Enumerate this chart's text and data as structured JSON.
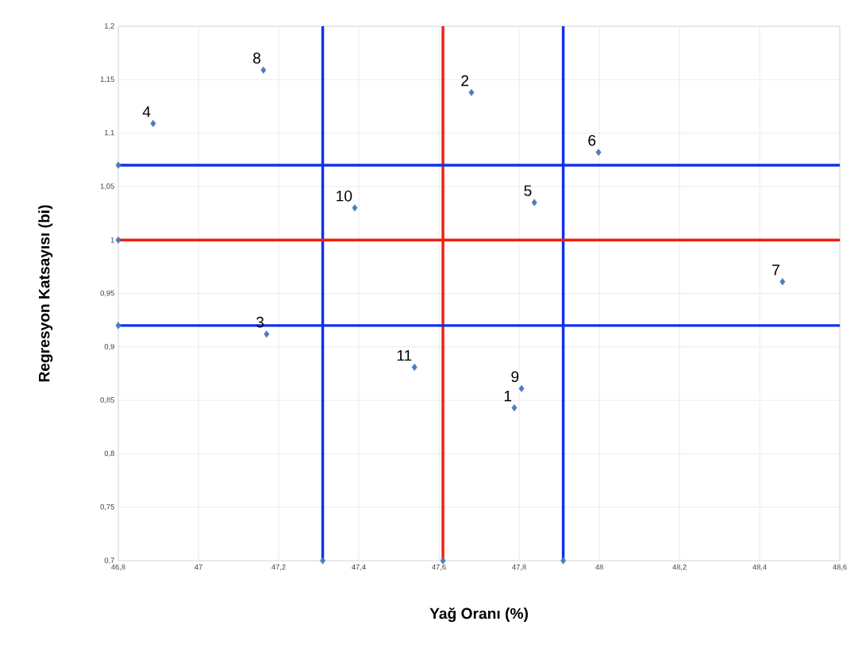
{
  "chart_data": {
    "type": "scatter",
    "xlabel": "Yağ Oranı (%)",
    "ylabel": "Regresyon Katsayısı (bi)",
    "series": [
      {
        "color": "#4a7ebb",
        "x": [
          47.788,
          47.681,
          47.17,
          46.887,
          47.838,
          47.998,
          48.457,
          47.162,
          47.806,
          47.39,
          47.539
        ],
        "values": [
          0.843,
          1.138,
          0.912,
          1.109,
          1.035,
          1.082,
          0.961,
          1.159,
          0.861,
          1.03,
          0.881
        ]
      },
      {
        "color": "#4a7ebb",
        "x": [
          46.8,
          46.8,
          46.8,
          47.31,
          47.61,
          47.91
        ],
        "values": [
          1.07,
          1.0,
          0.92,
          0.7,
          0.7,
          0.7
        ]
      }
    ],
    "marker": "diamond",
    "grid": true,
    "xlim": [
      46.8,
      48.6
    ],
    "ylim": [
      0.7,
      1.2
    ],
    "xticks": [
      {
        "value": 46.8,
        "label": "46,8"
      },
      47,
      {
        "value": 47.2,
        "label": "47,2"
      },
      {
        "value": 47.4,
        "label": "47,4"
      },
      {
        "value": 47.6,
        "label": "47,6"
      },
      {
        "value": 47.8,
        "label": "47,8"
      },
      48,
      {
        "value": 48.2,
        "label": "48,2"
      },
      {
        "value": 48.4,
        "label": "48,4"
      },
      {
        "value": 48.6,
        "label": "48,6"
      }
    ],
    "yticks": [
      {
        "value": 0.7,
        "label": "0,7"
      },
      {
        "value": 0.75,
        "label": "0,75"
      },
      {
        "value": 0.8,
        "label": "0,8"
      },
      {
        "value": 0.85,
        "label": "0,85"
      },
      {
        "value": 0.9,
        "label": "0,9"
      },
      {
        "value": 0.95,
        "label": "0,95"
      },
      1,
      {
        "value": 1.05,
        "label": "1,05"
      },
      {
        "value": 1.1,
        "label": "1,1"
      },
      {
        "value": 1.15,
        "label": "1,15"
      },
      {
        "value": 1.2,
        "label": "1,2"
      }
    ],
    "ref_lines": [
      {
        "axis": "x",
        "value": 47.31,
        "color": "#1030f0"
      },
      {
        "axis": "x",
        "value": 47.61,
        "color": "#f02010"
      },
      {
        "axis": "x",
        "value": 47.91,
        "color": "#1030f0"
      },
      {
        "axis": "y",
        "value": 1.07,
        "color": "#1030f0"
      },
      {
        "axis": "y",
        "value": 1.0,
        "color": "#f02010"
      },
      {
        "axis": "y",
        "value": 0.92,
        "color": "#1030f0"
      }
    ],
    "annotations": [
      {
        "text": "1",
        "x": 47.788,
        "y": 0.843
      },
      {
        "text": "2",
        "x": 47.681,
        "y": 1.138
      },
      {
        "text": "3",
        "x": 47.17,
        "y": 0.912
      },
      {
        "text": "4",
        "x": 46.887,
        "y": 1.109
      },
      {
        "text": "5",
        "x": 47.838,
        "y": 1.035
      },
      {
        "text": "6",
        "x": 47.998,
        "y": 1.082
      },
      {
        "text": "7",
        "x": 48.457,
        "y": 0.961
      },
      {
        "text": "8",
        "x": 47.162,
        "y": 1.159
      },
      {
        "text": "9",
        "x": 47.806,
        "y": 0.861
      },
      {
        "text": "10",
        "x": 47.39,
        "y": 1.03
      },
      {
        "text": "11",
        "x": 47.539,
        "y": 0.881
      }
    ]
  }
}
